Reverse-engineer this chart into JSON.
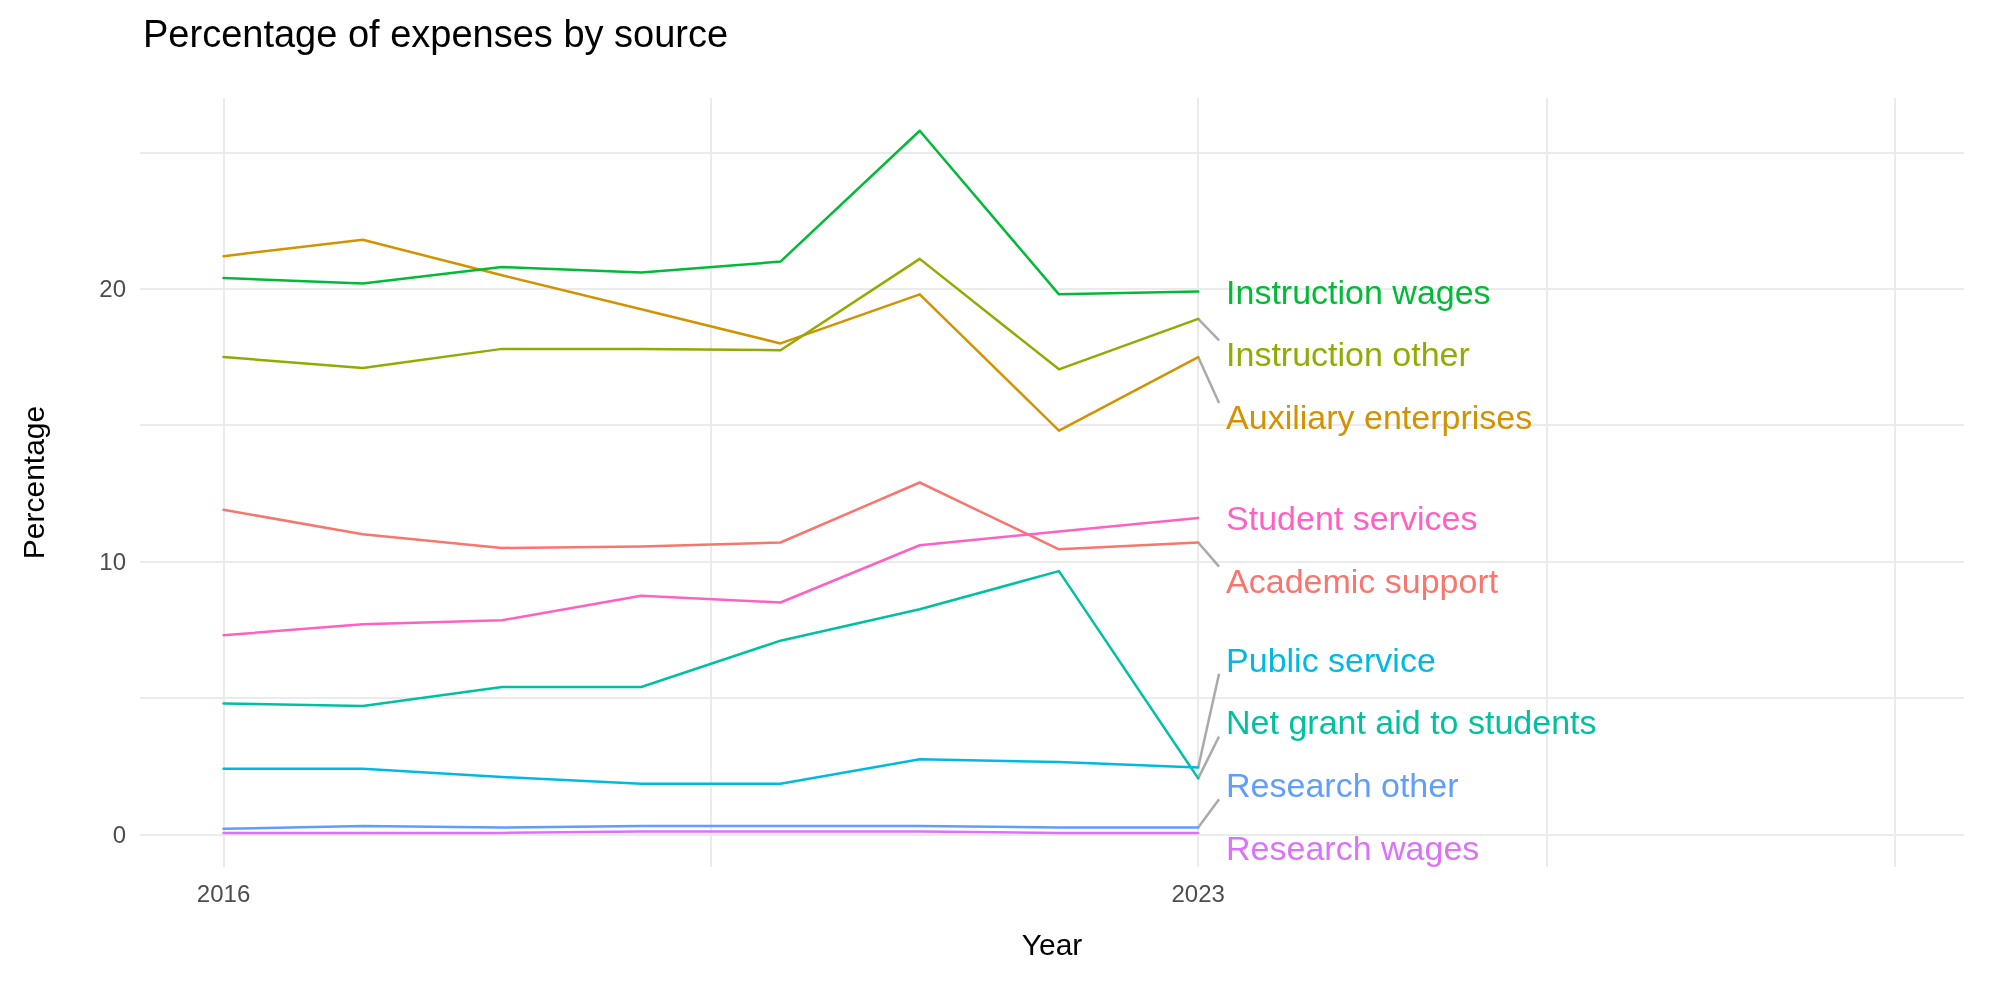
{
  "chart_data": {
    "type": "line",
    "title": "Percentage of expenses by source",
    "xlabel": "Year",
    "ylabel": "Percentage",
    "x": [
      2016,
      2017,
      2018,
      2019,
      2020,
      2021,
      2022,
      2023
    ],
    "xlim": [
      2015.4,
      2028.5
    ],
    "xticks": [
      2016,
      {
        "value": 2019.5,
        "label": null
      },
      2023,
      {
        "value": 2025.5,
        "label": null
      },
      {
        "value": 2028,
        "label": null
      }
    ],
    "ylim": [
      -1.2,
      27
    ],
    "yticks": [
      0,
      {
        "value": 5,
        "label": null
      },
      10,
      {
        "value": 15,
        "label": null
      },
      20,
      {
        "value": 25,
        "label": null
      }
    ],
    "grid": true,
    "legend": false,
    "marker": "none",
    "line_style": "solid",
    "series": [
      {
        "name": "Academic support",
        "color": "#f8766d",
        "values": [
          11.9,
          11.0,
          10.5,
          10.55,
          10.7,
          12.9,
          10.45,
          10.7
        ]
      },
      {
        "name": "Auxiliary enterprises",
        "color": "#d39200",
        "values": [
          21.2,
          21.8,
          20.5,
          19.25,
          18.0,
          19.8,
          14.8,
          17.5
        ]
      },
      {
        "name": "Instruction other",
        "color": "#93aa00",
        "values": [
          17.5,
          17.1,
          17.8,
          17.8,
          17.75,
          21.1,
          17.05,
          18.9
        ]
      },
      {
        "name": "Instruction wages",
        "color": "#00ba38",
        "values": [
          20.4,
          20.2,
          20.8,
          20.6,
          21.0,
          25.8,
          19.8,
          19.9
        ]
      },
      {
        "name": "Net grant aid to students",
        "color": "#00c19f",
        "values": [
          4.8,
          4.7,
          5.4,
          5.4,
          7.1,
          8.25,
          9.65,
          2.05
        ]
      },
      {
        "name": "Public service",
        "color": "#00b9e3",
        "values": [
          2.4,
          2.4,
          2.1,
          1.85,
          1.85,
          2.75,
          2.65,
          2.45
        ]
      },
      {
        "name": "Research other",
        "color": "#619cff",
        "values": [
          0.2,
          0.3,
          0.25,
          0.3,
          0.3,
          0.3,
          0.25,
          0.25
        ]
      },
      {
        "name": "Research wages",
        "color": "#db72fb",
        "values": [
          0.05,
          0.05,
          0.05,
          0.1,
          0.1,
          0.1,
          0.05,
          0.05
        ]
      },
      {
        "name": "Student services",
        "color": "#ff61c3",
        "values": [
          7.3,
          7.7,
          7.85,
          8.75,
          8.5,
          10.6,
          11.1,
          11.6
        ]
      }
    ]
  }
}
